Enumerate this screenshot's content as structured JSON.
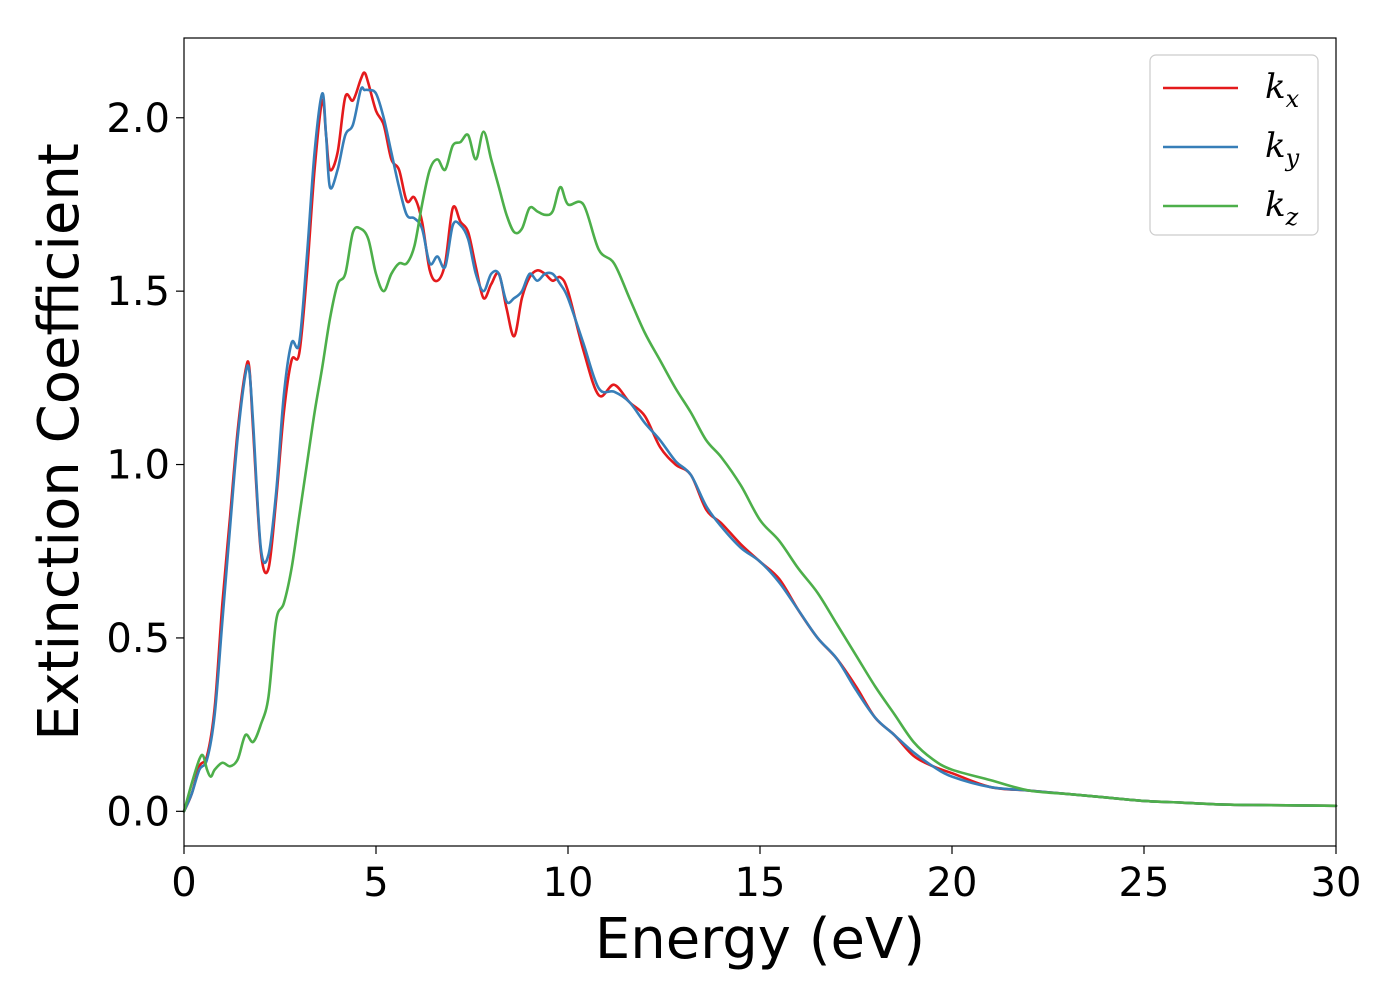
{
  "chart_data": {
    "type": "line",
    "xlabel": "Energy (eV)",
    "ylabel": "Extinction Coefficient",
    "xlim": [
      0,
      30
    ],
    "ylim": [
      -0.1,
      2.23
    ],
    "xticks": [
      0,
      5,
      10,
      15,
      20,
      25,
      30
    ],
    "xtick_labels": [
      "0",
      "5",
      "10",
      "15",
      "20",
      "25",
      "30"
    ],
    "yticks": [
      0.0,
      0.5,
      1.0,
      1.5,
      2.0
    ],
    "ytick_labels": [
      "0.0",
      "0.5",
      "1.0",
      "1.5",
      "2.0"
    ],
    "grid": false,
    "legend_position": "top-right",
    "series": [
      {
        "name": "k",
        "subscript": "x",
        "color": "#e41a1c",
        "x": [
          0,
          0.2,
          0.4,
          0.6,
          0.8,
          1.0,
          1.2,
          1.4,
          1.6,
          1.7,
          1.8,
          2.0,
          2.2,
          2.4,
          2.6,
          2.8,
          3.0,
          3.2,
          3.4,
          3.6,
          3.7,
          3.8,
          4.0,
          4.2,
          4.4,
          4.6,
          4.7,
          4.8,
          5.0,
          5.2,
          5.4,
          5.6,
          5.8,
          6.0,
          6.2,
          6.4,
          6.6,
          6.8,
          7.0,
          7.2,
          7.4,
          7.6,
          7.8,
          8.0,
          8.2,
          8.4,
          8.6,
          8.8,
          9.0,
          9.2,
          9.4,
          9.6,
          9.8,
          10.0,
          10.4,
          10.8,
          11.2,
          11.6,
          12.0,
          12.4,
          12.8,
          13.2,
          13.6,
          14.0,
          14.5,
          15.0,
          15.5,
          16.0,
          16.5,
          17.0,
          17.5,
          18.0,
          18.5,
          19.0,
          19.5,
          20.0,
          21.0,
          22.0,
          23.0,
          24.0,
          25.0,
          26.0,
          27.0,
          28.0,
          29.0,
          30.0
        ],
        "y": [
          0.0,
          0.05,
          0.13,
          0.16,
          0.3,
          0.6,
          0.85,
          1.1,
          1.27,
          1.28,
          1.1,
          0.75,
          0.7,
          0.9,
          1.15,
          1.3,
          1.32,
          1.55,
          1.85,
          2.05,
          1.95,
          1.85,
          1.9,
          2.06,
          2.05,
          2.11,
          2.13,
          2.1,
          2.02,
          1.98,
          1.88,
          1.85,
          1.76,
          1.77,
          1.7,
          1.56,
          1.53,
          1.58,
          1.74,
          1.7,
          1.67,
          1.57,
          1.48,
          1.52,
          1.55,
          1.45,
          1.37,
          1.48,
          1.54,
          1.56,
          1.55,
          1.53,
          1.54,
          1.5,
          1.33,
          1.2,
          1.23,
          1.18,
          1.14,
          1.05,
          1.0,
          0.97,
          0.87,
          0.83,
          0.77,
          0.72,
          0.67,
          0.58,
          0.5,
          0.44,
          0.36,
          0.27,
          0.22,
          0.16,
          0.13,
          0.11,
          0.07,
          0.06,
          0.05,
          0.04,
          0.03,
          0.025,
          0.02,
          0.018,
          0.017,
          0.016
        ]
      },
      {
        "name": "k",
        "subscript": "y",
        "color": "#377eb8",
        "x": [
          0,
          0.2,
          0.4,
          0.6,
          0.8,
          1.0,
          1.2,
          1.4,
          1.6,
          1.7,
          1.8,
          2.0,
          2.2,
          2.4,
          2.6,
          2.8,
          3.0,
          3.2,
          3.4,
          3.6,
          3.7,
          3.8,
          4.0,
          4.2,
          4.4,
          4.6,
          4.7,
          4.8,
          5.0,
          5.2,
          5.4,
          5.6,
          5.8,
          6.0,
          6.2,
          6.4,
          6.6,
          6.8,
          7.0,
          7.2,
          7.4,
          7.6,
          7.8,
          8.0,
          8.2,
          8.4,
          8.6,
          8.8,
          9.0,
          9.2,
          9.4,
          9.6,
          9.8,
          10.0,
          10.4,
          10.8,
          11.2,
          11.6,
          12.0,
          12.4,
          12.8,
          13.2,
          13.6,
          14.0,
          14.5,
          15.0,
          15.5,
          16.0,
          16.5,
          17.0,
          17.5,
          18.0,
          18.5,
          19.0,
          19.5,
          20.0,
          21.0,
          22.0,
          23.0,
          24.0,
          25.0,
          26.0,
          27.0,
          28.0,
          29.0,
          30.0
        ],
        "y": [
          0.0,
          0.05,
          0.12,
          0.15,
          0.28,
          0.55,
          0.82,
          1.08,
          1.26,
          1.27,
          1.12,
          0.76,
          0.74,
          0.92,
          1.2,
          1.35,
          1.35,
          1.6,
          1.9,
          2.07,
          1.95,
          1.8,
          1.85,
          1.95,
          1.98,
          2.08,
          2.08,
          2.08,
          2.07,
          2.0,
          1.9,
          1.8,
          1.72,
          1.71,
          1.68,
          1.58,
          1.6,
          1.57,
          1.69,
          1.69,
          1.65,
          1.55,
          1.5,
          1.55,
          1.55,
          1.47,
          1.48,
          1.5,
          1.55,
          1.53,
          1.55,
          1.55,
          1.52,
          1.48,
          1.35,
          1.22,
          1.21,
          1.18,
          1.12,
          1.07,
          1.01,
          0.97,
          0.88,
          0.82,
          0.76,
          0.72,
          0.66,
          0.58,
          0.5,
          0.44,
          0.35,
          0.27,
          0.22,
          0.17,
          0.13,
          0.1,
          0.07,
          0.06,
          0.05,
          0.04,
          0.03,
          0.025,
          0.02,
          0.018,
          0.017,
          0.016
        ]
      },
      {
        "name": "k",
        "subscript": "z",
        "color": "#4daf4a",
        "x": [
          0,
          0.2,
          0.4,
          0.5,
          0.6,
          0.7,
          0.8,
          1.0,
          1.2,
          1.4,
          1.6,
          1.8,
          2.0,
          2.2,
          2.4,
          2.6,
          2.8,
          3.0,
          3.2,
          3.4,
          3.6,
          3.8,
          4.0,
          4.2,
          4.4,
          4.6,
          4.8,
          5.0,
          5.2,
          5.4,
          5.6,
          5.8,
          6.0,
          6.2,
          6.4,
          6.6,
          6.8,
          7.0,
          7.2,
          7.4,
          7.6,
          7.8,
          8.0,
          8.2,
          8.4,
          8.6,
          8.8,
          9.0,
          9.2,
          9.4,
          9.6,
          9.8,
          10.0,
          10.4,
          10.8,
          11.2,
          11.6,
          12.0,
          12.4,
          12.8,
          13.2,
          13.6,
          14.0,
          14.5,
          15.0,
          15.5,
          16.0,
          16.5,
          17.0,
          17.5,
          18.0,
          18.5,
          19.0,
          19.5,
          20.0,
          21.0,
          22.0,
          23.0,
          24.0,
          25.0,
          26.0,
          27.0,
          28.0,
          29.0,
          30.0
        ],
        "y": [
          0.0,
          0.08,
          0.15,
          0.16,
          0.12,
          0.1,
          0.12,
          0.14,
          0.13,
          0.15,
          0.22,
          0.2,
          0.25,
          0.33,
          0.55,
          0.6,
          0.7,
          0.85,
          1.0,
          1.15,
          1.28,
          1.42,
          1.52,
          1.55,
          1.67,
          1.68,
          1.65,
          1.55,
          1.5,
          1.55,
          1.58,
          1.58,
          1.63,
          1.75,
          1.85,
          1.88,
          1.85,
          1.92,
          1.93,
          1.95,
          1.88,
          1.96,
          1.88,
          1.8,
          1.72,
          1.67,
          1.68,
          1.74,
          1.73,
          1.72,
          1.73,
          1.8,
          1.75,
          1.75,
          1.62,
          1.58,
          1.48,
          1.38,
          1.3,
          1.22,
          1.15,
          1.07,
          1.02,
          0.94,
          0.84,
          0.78,
          0.7,
          0.63,
          0.54,
          0.45,
          0.36,
          0.28,
          0.2,
          0.15,
          0.12,
          0.09,
          0.06,
          0.05,
          0.04,
          0.03,
          0.025,
          0.02,
          0.018,
          0.017,
          0.016
        ]
      }
    ]
  }
}
